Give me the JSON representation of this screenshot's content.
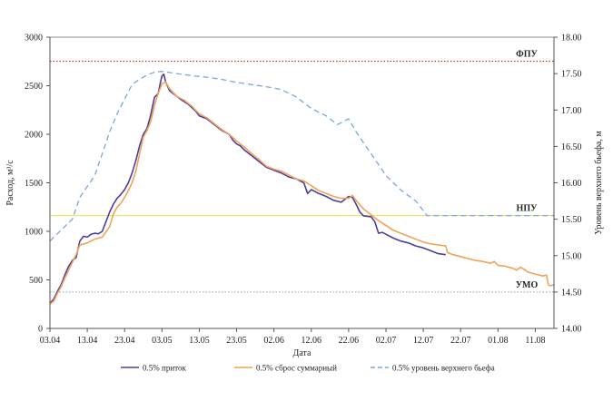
{
  "chart_data": {
    "type": "line",
    "xlabel": "Дата",
    "ylabel_left": "Расход, м³/с",
    "ylabel_right": "Уровень верхнего бьефа, м",
    "x_start_date": "2013-04-03",
    "x_days": 135,
    "x_ticks": [
      {
        "label": "03.04",
        "day": 0
      },
      {
        "label": "13.04",
        "day": 10
      },
      {
        "label": "23.04",
        "day": 20
      },
      {
        "label": "03.05",
        "day": 30
      },
      {
        "label": "13.05",
        "day": 40
      },
      {
        "label": "23.05",
        "day": 50
      },
      {
        "label": "02.06",
        "day": 60
      },
      {
        "label": "12.06",
        "day": 70
      },
      {
        "label": "22.06",
        "day": 80
      },
      {
        "label": "02.07",
        "day": 90
      },
      {
        "label": "12.07",
        "day": 100
      },
      {
        "label": "22.07",
        "day": 110
      },
      {
        "label": "01.08",
        "day": 120
      },
      {
        "label": "11.08",
        "day": 130
      }
    ],
    "ylim_left": [
      0,
      3000
    ],
    "yticks_left": [
      {
        "label": "0",
        "value": 0
      },
      {
        "label": "500",
        "value": 500
      },
      {
        "label": "1000",
        "value": 1000
      },
      {
        "label": "1500",
        "value": 1500
      },
      {
        "label": "2000",
        "value": 2000
      },
      {
        "label": "2500",
        "value": 2500
      },
      {
        "label": "3000",
        "value": 3000
      }
    ],
    "ylim_right": [
      14.0,
      18.0
    ],
    "yticks_right": [
      {
        "label": "14.00",
        "value": 14.0
      },
      {
        "label": "14.50",
        "value": 14.5
      },
      {
        "label": "15.00",
        "value": 15.0
      },
      {
        "label": "15.50",
        "value": 15.5
      },
      {
        "label": "16.00",
        "value": 16.0
      },
      {
        "label": "16.50",
        "value": 16.5
      },
      {
        "label": "17.00",
        "value": 17.0
      },
      {
        "label": "17.50",
        "value": 17.5
      },
      {
        "label": "18.00",
        "value": 18.0
      }
    ],
    "reference_lines": [
      {
        "label": "ФПУ",
        "level": 17.67,
        "color": "#c0392b",
        "style": "dotted"
      },
      {
        "label": "НПУ",
        "level": 15.55,
        "color": "#e8e24a",
        "style": "solid"
      },
      {
        "label": "УМО",
        "level": 14.5,
        "color": "#aab0b5",
        "style": "dotted"
      }
    ],
    "series": [
      {
        "name": "0.5% приток",
        "axis": "left",
        "color": "#4b3f9a",
        "style": "solid",
        "points": [
          [
            0,
            260
          ],
          [
            1,
            300
          ],
          [
            2,
            380
          ],
          [
            3,
            450
          ],
          [
            4,
            550
          ],
          [
            5,
            640
          ],
          [
            6,
            700
          ],
          [
            7,
            730
          ],
          [
            8,
            900
          ],
          [
            9,
            950
          ],
          [
            10,
            940
          ],
          [
            11,
            970
          ],
          [
            12,
            980
          ],
          [
            13,
            975
          ],
          [
            14,
            1000
          ],
          [
            15,
            1100
          ],
          [
            16,
            1200
          ],
          [
            17,
            1280
          ],
          [
            18,
            1340
          ],
          [
            19,
            1380
          ],
          [
            20,
            1430
          ],
          [
            21,
            1500
          ],
          [
            22,
            1600
          ],
          [
            23,
            1730
          ],
          [
            24,
            1880
          ],
          [
            25,
            2000
          ],
          [
            26,
            2060
          ],
          [
            27,
            2200
          ],
          [
            28,
            2380
          ],
          [
            29,
            2420
          ],
          [
            29.5,
            2520
          ],
          [
            30,
            2600
          ],
          [
            30.5,
            2620
          ],
          [
            31,
            2540
          ],
          [
            32,
            2450
          ],
          [
            33,
            2420
          ],
          [
            35,
            2360
          ],
          [
            37,
            2310
          ],
          [
            39,
            2240
          ],
          [
            40,
            2190
          ],
          [
            42,
            2160
          ],
          [
            44,
            2100
          ],
          [
            46,
            2040
          ],
          [
            48,
            2000
          ],
          [
            49,
            1940
          ],
          [
            50,
            1900
          ],
          [
            51,
            1880
          ],
          [
            52,
            1840
          ],
          [
            54,
            1780
          ],
          [
            56,
            1720
          ],
          [
            58,
            1660
          ],
          [
            60,
            1630
          ],
          [
            62,
            1600
          ],
          [
            64,
            1560
          ],
          [
            66,
            1540
          ],
          [
            67,
            1520
          ],
          [
            68,
            1500
          ],
          [
            69,
            1390
          ],
          [
            70,
            1430
          ],
          [
            72,
            1390
          ],
          [
            74,
            1360
          ],
          [
            76,
            1320
          ],
          [
            78,
            1300
          ],
          [
            79,
            1330
          ],
          [
            80,
            1360
          ],
          [
            81,
            1350
          ],
          [
            82,
            1280
          ],
          [
            83,
            1200
          ],
          [
            84,
            1160
          ],
          [
            86,
            1150
          ],
          [
            87,
            1100
          ],
          [
            88,
            980
          ],
          [
            89,
            990
          ],
          [
            90,
            970
          ],
          [
            92,
            930
          ],
          [
            94,
            900
          ],
          [
            96,
            880
          ],
          [
            98,
            850
          ],
          [
            100,
            830
          ],
          [
            102,
            800
          ],
          [
            104,
            770
          ],
          [
            106,
            760
          ]
        ]
      },
      {
        "name": "0.5% сброс суммарный",
        "axis": "left",
        "color": "#f0a25a",
        "style": "solid",
        "points": [
          [
            0,
            250
          ],
          [
            1,
            280
          ],
          [
            2,
            360
          ],
          [
            3,
            430
          ],
          [
            4,
            520
          ],
          [
            5,
            600
          ],
          [
            6,
            680
          ],
          [
            7,
            760
          ],
          [
            8,
            860
          ],
          [
            10,
            880
          ],
          [
            12,
            920
          ],
          [
            14,
            940
          ],
          [
            16,
            1050
          ],
          [
            17,
            1180
          ],
          [
            18,
            1250
          ],
          [
            19,
            1290
          ],
          [
            20,
            1350
          ],
          [
            21,
            1420
          ],
          [
            22,
            1500
          ],
          [
            23,
            1620
          ],
          [
            24,
            1800
          ],
          [
            25,
            1970
          ],
          [
            26,
            2040
          ],
          [
            27,
            2130
          ],
          [
            28,
            2300
          ],
          [
            29,
            2420
          ],
          [
            30,
            2520
          ],
          [
            31,
            2540
          ],
          [
            32,
            2470
          ],
          [
            34,
            2390
          ],
          [
            36,
            2350
          ],
          [
            38,
            2290
          ],
          [
            40,
            2210
          ],
          [
            42,
            2170
          ],
          [
            44,
            2110
          ],
          [
            46,
            2050
          ],
          [
            48,
            2000
          ],
          [
            50,
            1930
          ],
          [
            52,
            1870
          ],
          [
            54,
            1800
          ],
          [
            56,
            1740
          ],
          [
            58,
            1670
          ],
          [
            60,
            1640
          ],
          [
            62,
            1620
          ],
          [
            64,
            1580
          ],
          [
            66,
            1540
          ],
          [
            68,
            1520
          ],
          [
            70,
            1470
          ],
          [
            72,
            1420
          ],
          [
            74,
            1390
          ],
          [
            76,
            1360
          ],
          [
            78,
            1340
          ],
          [
            80,
            1340
          ],
          [
            81,
            1370
          ],
          [
            82,
            1320
          ],
          [
            84,
            1230
          ],
          [
            86,
            1170
          ],
          [
            88,
            1110
          ],
          [
            90,
            1060
          ],
          [
            92,
            1010
          ],
          [
            94,
            980
          ],
          [
            96,
            950
          ],
          [
            98,
            920
          ],
          [
            100,
            890
          ],
          [
            102,
            870
          ],
          [
            104,
            860
          ],
          [
            106,
            850
          ],
          [
            106.5,
            780
          ],
          [
            108,
            760
          ],
          [
            110,
            740
          ],
          [
            112,
            720
          ],
          [
            114,
            700
          ],
          [
            116,
            690
          ],
          [
            118,
            670
          ],
          [
            119,
            690
          ],
          [
            120,
            650
          ],
          [
            122,
            640
          ],
          [
            124,
            620
          ],
          [
            125,
            600
          ],
          [
            126,
            630
          ],
          [
            127,
            610
          ],
          [
            128,
            580
          ],
          [
            130,
            560
          ],
          [
            132,
            540
          ],
          [
            133,
            550
          ],
          [
            133.5,
            450
          ],
          [
            134,
            440
          ],
          [
            135,
            450
          ]
        ]
      },
      {
        "name": "0.5% уровень верхнего бьефа",
        "axis": "right",
        "color": "#7aa6df",
        "style": "dashed",
        "points": [
          [
            0,
            15.2
          ],
          [
            2,
            15.3
          ],
          [
            4,
            15.4
          ],
          [
            6,
            15.5
          ],
          [
            8,
            15.8
          ],
          [
            10,
            15.95
          ],
          [
            12,
            16.1
          ],
          [
            14,
            16.4
          ],
          [
            16,
            16.7
          ],
          [
            18,
            16.95
          ],
          [
            20,
            17.15
          ],
          [
            22,
            17.35
          ],
          [
            24,
            17.42
          ],
          [
            26,
            17.48
          ],
          [
            28,
            17.52
          ],
          [
            30,
            17.53
          ],
          [
            34,
            17.5
          ],
          [
            38,
            17.47
          ],
          [
            42,
            17.45
          ],
          [
            46,
            17.42
          ],
          [
            50,
            17.38
          ],
          [
            54,
            17.35
          ],
          [
            58,
            17.32
          ],
          [
            62,
            17.28
          ],
          [
            66,
            17.18
          ],
          [
            70,
            17.02
          ],
          [
            74,
            16.92
          ],
          [
            77,
            16.8
          ],
          [
            80,
            16.88
          ],
          [
            82,
            16.7
          ],
          [
            84,
            16.55
          ],
          [
            86,
            16.4
          ],
          [
            88,
            16.25
          ],
          [
            90,
            16.1
          ],
          [
            94,
            15.9
          ],
          [
            98,
            15.75
          ],
          [
            101,
            15.55
          ],
          [
            104,
            15.55
          ],
          [
            110,
            15.55
          ],
          [
            120,
            15.55
          ],
          [
            130,
            15.55
          ],
          [
            135,
            15.55
          ]
        ]
      }
    ]
  }
}
